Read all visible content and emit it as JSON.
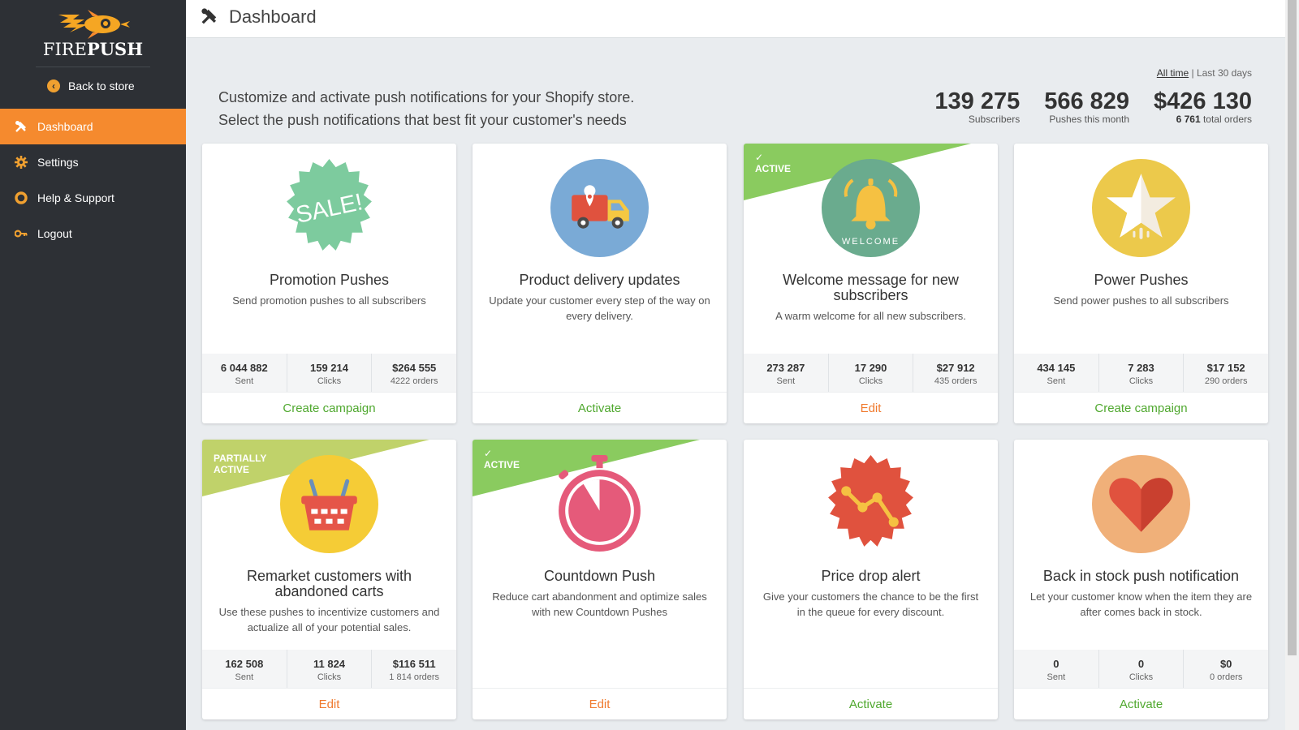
{
  "brand": {
    "fire": "FIRE",
    "push": "PUSH"
  },
  "sidebar": {
    "back_label": "Back to store",
    "items": [
      {
        "label": "Dashboard",
        "icon": "tools-icon",
        "active": true
      },
      {
        "label": "Settings",
        "icon": "gear-icon",
        "active": false
      },
      {
        "label": "Help & Support",
        "icon": "lifebuoy-icon",
        "active": false
      },
      {
        "label": "Logout",
        "icon": "key-icon",
        "active": false
      }
    ]
  },
  "header": {
    "title": "Dashboard"
  },
  "intro": {
    "line1": "Customize and activate push notifications for your Shopify store.",
    "line2": "Select the push notifications that best fit your customer's needs"
  },
  "range": {
    "all_time": "All time",
    "separator": "|",
    "last_30": "Last 30 days"
  },
  "stats": {
    "subscribers": {
      "value": "139 275",
      "label": "Subscribers"
    },
    "pushes": {
      "value": "566 829",
      "label": "Pushes this month"
    },
    "revenue": {
      "value": "$426 130",
      "orders": "6 761",
      "label": "total orders"
    }
  },
  "colors": {
    "accent": "#f58a2e",
    "sidebar": "#2d3035",
    "green": "#4fa82e",
    "orange": "#f07a2e"
  },
  "cards": [
    {
      "title": "Promotion Pushes",
      "desc": "Send promotion pushes to all subscribers",
      "metrics": [
        {
          "value": "6 044 882",
          "label": "Sent"
        },
        {
          "value": "159 214",
          "label": "Clicks"
        },
        {
          "value": "$264 555",
          "label": "4222 orders"
        }
      ],
      "action": "Create campaign"
    },
    {
      "title": "Product delivery updates",
      "desc": "Update your customer every step of the way on every delivery.",
      "action": "Activate"
    },
    {
      "ribbon": "ACTIVE",
      "title": "Welcome message for new subscribers",
      "desc": "A warm welcome for all new subscribers.",
      "metrics": [
        {
          "value": "273 287",
          "label": "Sent"
        },
        {
          "value": "17 290",
          "label": "Clicks"
        },
        {
          "value": "$27 912",
          "label": "435 orders"
        }
      ],
      "action": "Edit"
    },
    {
      "title": "Power Pushes",
      "desc": "Send power pushes to all subscribers",
      "metrics": [
        {
          "value": "434 145",
          "label": "Sent"
        },
        {
          "value": "7 283",
          "label": "Clicks"
        },
        {
          "value": "$17 152",
          "label": "290 orders"
        }
      ],
      "action": "Create campaign"
    },
    {
      "ribbon_line1": "PARTIALLY",
      "ribbon_line2": "ACTIVE",
      "title": "Remarket customers with abandoned carts",
      "desc": "Use these pushes to incentivize customers and actualize all of your potential sales.",
      "metrics": [
        {
          "value": "162 508",
          "label": "Sent"
        },
        {
          "value": "11 824",
          "label": "Clicks"
        },
        {
          "value": "$116 511",
          "label": "1 814 orders"
        }
      ],
      "action": "Edit"
    },
    {
      "ribbon": "ACTIVE",
      "title": "Countdown Push",
      "desc": "Reduce cart abandonment and optimize sales with new Countdown Pushes",
      "action": "Edit"
    },
    {
      "title": "Price drop alert",
      "desc": "Give your customers the chance to be the first in the queue for every discount.",
      "action": "Activate"
    },
    {
      "title": "Back in stock push notification",
      "desc": "Let your customer know when the item they are after comes back in stock.",
      "metrics": [
        {
          "value": "0",
          "label": "Sent"
        },
        {
          "value": "0",
          "label": "Clicks"
        },
        {
          "value": "$0",
          "label": "0 orders"
        }
      ],
      "action": "Activate"
    }
  ]
}
